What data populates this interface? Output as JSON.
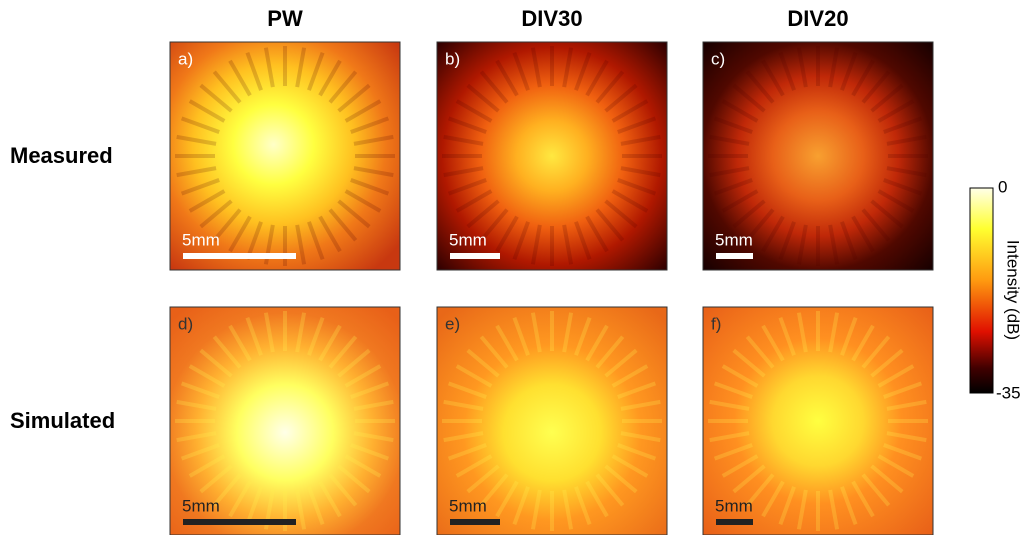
{
  "columns": [
    "PW",
    "DIV30",
    "DIV20"
  ],
  "rows": [
    "Measured",
    "Simulated"
  ],
  "panels": [
    {
      "label": "a)",
      "scale_bar": "5mm"
    },
    {
      "label": "b)",
      "scale_bar": "5mm"
    },
    {
      "label": "c)",
      "scale_bar": "5mm"
    },
    {
      "label": "d)",
      "scale_bar": "5mm"
    },
    {
      "label": "e)",
      "scale_bar": "5mm"
    },
    {
      "label": "f)",
      "scale_bar": "5mm"
    }
  ],
  "colorbar": {
    "max": 0,
    "min": -35,
    "label": "Intensity (dB)"
  }
}
